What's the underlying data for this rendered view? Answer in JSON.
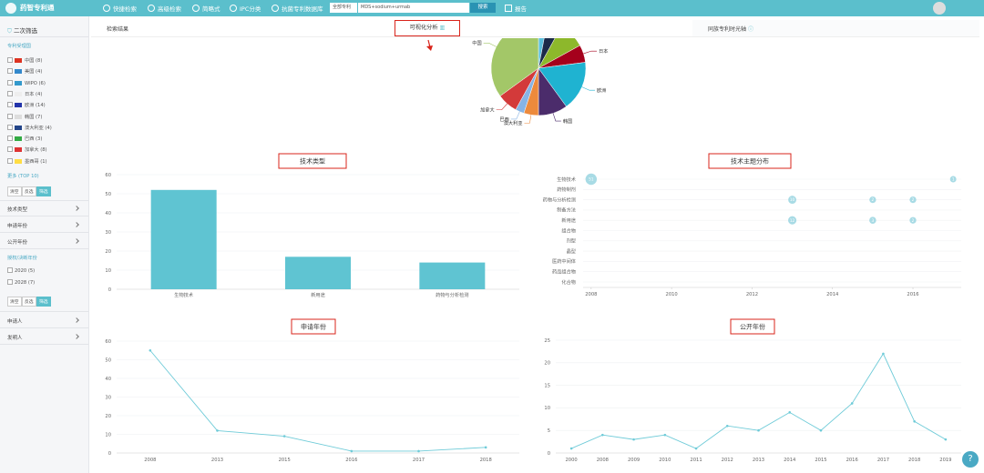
{
  "header": {
    "logo": "药智专利通",
    "nav": [
      "快捷检索",
      "高级检索",
      "简略式",
      "IPC分类",
      "抗菌专利数据库"
    ],
    "search_scope": "全部专利",
    "search_query": "MDS+sodium+urmab",
    "search_button": "搜索",
    "report": "报告"
  },
  "sidebar": {
    "title": "二次筛选",
    "country_heading": "专利受理国",
    "countries": [
      "中国 (8)",
      "美国 (4)",
      "WIPO (6)",
      "日本 (4)",
      "欧洲 (14)",
      "韩国 (7)",
      "澳大利亚 (4)",
      "巴西 (3)",
      "加拿大 (8)",
      "墨西哥 (1)"
    ],
    "more": "更多 (TOP 10)",
    "buttons": [
      "清空",
      "反选",
      "筛选"
    ],
    "sections": [
      "技术类型",
      "申请年份",
      "公开年份"
    ],
    "auth_heading": "授权/决断年份",
    "auth_years": [
      "2020 (5)",
      "2028 (7)"
    ],
    "buttons2": [
      "清空",
      "反选",
      "筛选"
    ],
    "sections2": [
      "申请人",
      "发明人"
    ]
  },
  "tabs": [
    "检索结果",
    "可视化分析",
    "同族专利时光轴"
  ],
  "chart_data": [
    {
      "type": "pie",
      "categories": [
        "墨西哥",
        "WIPO",
        "美国",
        "日本",
        "欧洲",
        "韩国",
        "澳大利亚",
        "巴西",
        "加拿大",
        "中国"
      ],
      "values": [
        3,
        5,
        9,
        6,
        17,
        10,
        5,
        3,
        7,
        35
      ],
      "colors": [
        "#5bc0de",
        "#1c2b4a",
        "#8db82b",
        "#a5001c",
        "#1fb3d1",
        "#4b2c6b",
        "#ed8a3c",
        "#87b4e5",
        "#d33a3a",
        "#a3c768"
      ]
    },
    {
      "type": "bar",
      "title": "技术类型",
      "categories": [
        "生物技术",
        "新用途",
        "药物与分析检测"
      ],
      "values": [
        52,
        17,
        14
      ],
      "color": "#5fc4d2",
      "ylim": [
        0,
        60
      ],
      "yticks": [
        0,
        10,
        20,
        30,
        40,
        50,
        60
      ],
      "grid": true
    },
    {
      "type": "bubble",
      "title": "技术主题分布",
      "categories": [
        "生物技术",
        "药物制剂",
        "药物与分析检测",
        "制备方法",
        "新用途",
        "组合物",
        "剂型",
        "晶型",
        "医药中间体",
        "药品组合物",
        "化合物"
      ],
      "values": [
        [
          {
            "x": 2008,
            "size": 51
          },
          {
            "x": 2017,
            "size": 1
          }
        ],
        [],
        [
          {
            "x": 2013,
            "size": 10
          },
          {
            "x": 2015,
            "size": 2
          },
          {
            "x": 2016,
            "size": 2
          }
        ],
        [],
        [
          {
            "x": 2013,
            "size": 12
          },
          {
            "x": 2015,
            "size": 3
          },
          {
            "x": 2016,
            "size": 2
          }
        ],
        [],
        [],
        [],
        [],
        [],
        []
      ],
      "color": "#a8dbe5",
      "xlim": [
        2007.8,
        2017.2
      ],
      "xticks": [
        2008,
        2010,
        2012,
        2014,
        2016
      ]
    },
    {
      "type": "line",
      "title": "申请年份",
      "categories": [
        "2008",
        "2013",
        "2015",
        "2016",
        "2017",
        "2018"
      ],
      "values": [
        55,
        12,
        9,
        1,
        1,
        3
      ],
      "color": "#6fcbd8",
      "ylim": [
        0,
        60
      ],
      "yticks": [
        0,
        10,
        20,
        30,
        40,
        50,
        60
      ],
      "grid": true
    },
    {
      "type": "line",
      "title": "公开年份",
      "categories": [
        "2000",
        "2008",
        "2009",
        "2010",
        "2011",
        "2012",
        "2013",
        "2014",
        "2015",
        "2016",
        "2017",
        "2018",
        "2019"
      ],
      "values": [
        1,
        4,
        3,
        4,
        1,
        6,
        5,
        9,
        5,
        11,
        22,
        7,
        3
      ],
      "color": "#6fcbd8",
      "ylim": [
        0,
        25
      ],
      "yticks": [
        0,
        5,
        10,
        15,
        20,
        25
      ],
      "grid": true
    }
  ]
}
